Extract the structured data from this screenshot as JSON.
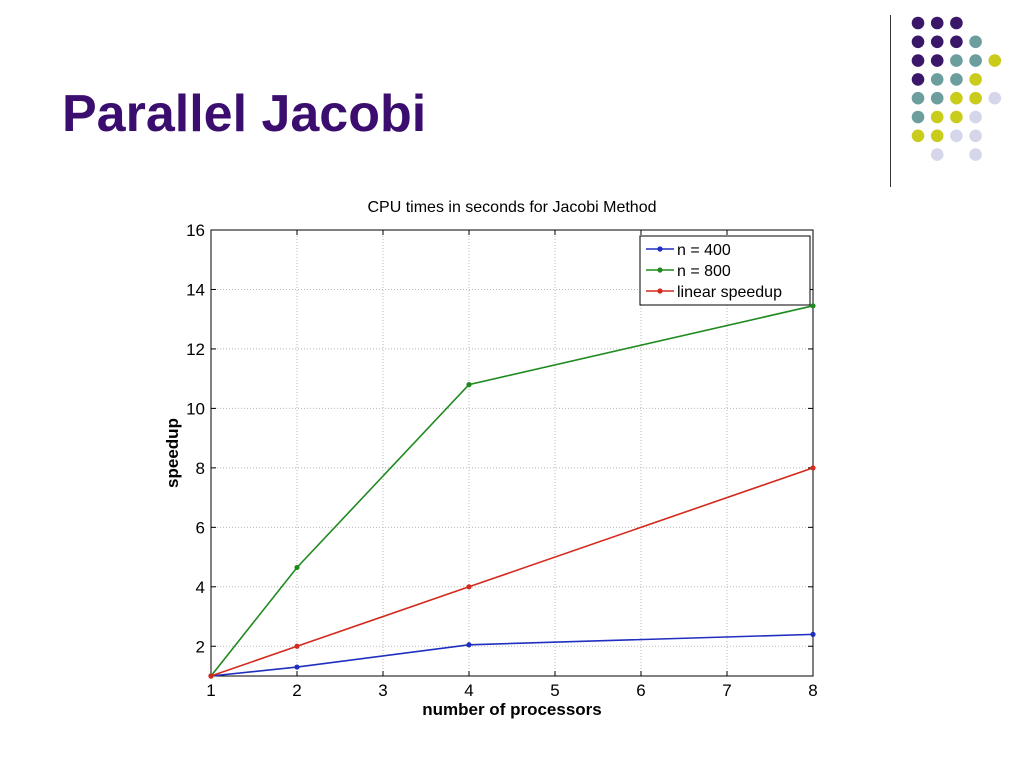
{
  "slide": {
    "title": "Parallel Jacobi"
  },
  "decoration": {
    "dot_colors": {
      "purple": "#3b1769",
      "teal": "#6c9e9e",
      "yellow": "#c9cc1a",
      "lavender": "#d6d6ea"
    },
    "dot_rows": [
      [
        "purple",
        "purple",
        "purple",
        null,
        null
      ],
      [
        "purple",
        "purple",
        "purple",
        "teal",
        null
      ],
      [
        "purple",
        "purple",
        "teal",
        "teal",
        "yellow"
      ],
      [
        "purple",
        "teal",
        "teal",
        "yellow",
        null
      ],
      [
        "teal",
        "teal",
        "yellow",
        "yellow",
        "lavender"
      ],
      [
        "teal",
        "yellow",
        "yellow",
        "lavender",
        null
      ],
      [
        "yellow",
        "yellow",
        "lavender",
        "lavender",
        null
      ],
      [
        null,
        "lavender",
        null,
        "lavender",
        null
      ]
    ]
  },
  "chart_data": {
    "type": "line",
    "title": "CPU times in seconds for Jacobi Method",
    "xlabel": "number of processors",
    "ylabel": "speedup",
    "xlim": [
      1,
      8
    ],
    "ylim": [
      1,
      16
    ],
    "xticks": [
      1,
      2,
      3,
      4,
      5,
      6,
      7,
      8
    ],
    "yticks": [
      2,
      4,
      6,
      8,
      10,
      12,
      14,
      16
    ],
    "grid": true,
    "legend_position": "top-right",
    "series": [
      {
        "name": "n = 400",
        "color": "#1f2fbf",
        "x": [
          1,
          2,
          4,
          8
        ],
        "y": [
          1,
          1.3,
          2.05,
          2.4
        ]
      },
      {
        "name": "n = 800",
        "color": "#1f8a1f",
        "x": [
          1,
          2,
          4,
          8
        ],
        "y": [
          1,
          4.65,
          10.8,
          13.45
        ]
      },
      {
        "name": "linear speedup",
        "color": "#d42a1e",
        "x": [
          1,
          2,
          4,
          8
        ],
        "y": [
          1,
          2,
          4,
          8
        ]
      }
    ]
  }
}
